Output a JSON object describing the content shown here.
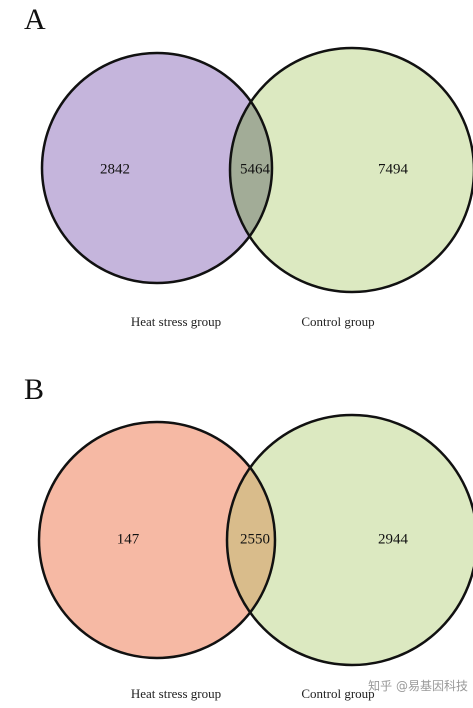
{
  "panels": [
    {
      "letter": "A",
      "left": {
        "label": "Heat stress group",
        "count": "2842"
      },
      "overlap": {
        "count": "5464"
      },
      "right": {
        "label": "Control group",
        "count": "7494"
      }
    },
    {
      "letter": "B",
      "left": {
        "label": "Heat stress group",
        "count": "147"
      },
      "overlap": {
        "count": "2550"
      },
      "right": {
        "label": "Control group",
        "count": "2944"
      }
    }
  ],
  "watermark": "知乎 @易基因科技"
}
